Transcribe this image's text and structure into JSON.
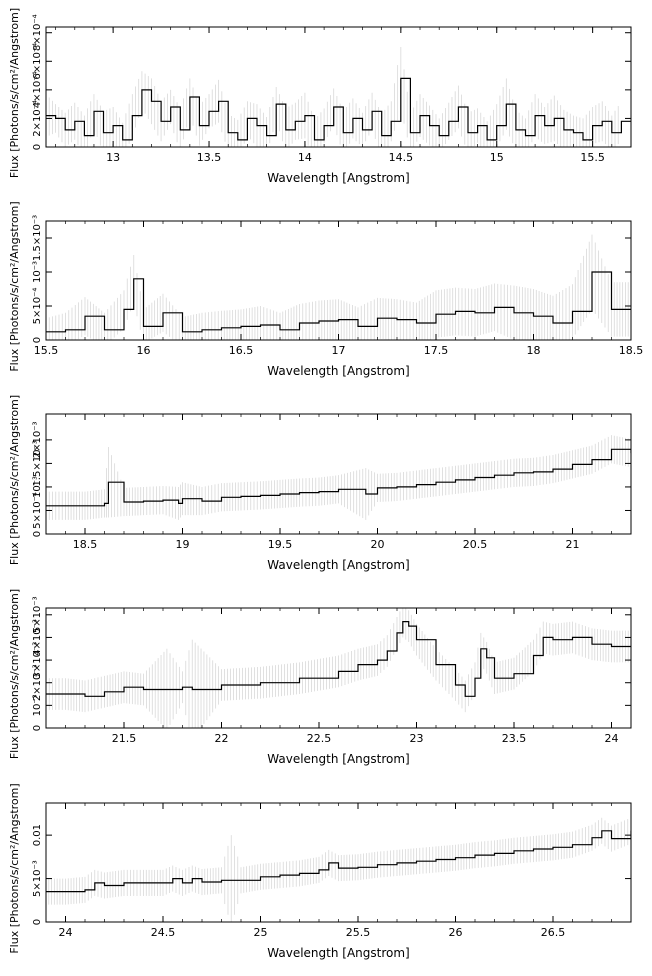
{
  "colors": {
    "data": "#000000",
    "error": "#d8d8d8",
    "axis": "#000000",
    "background": "#ffffff"
  },
  "chart_data": [
    {
      "type": "line",
      "title": "",
      "xlabel": "Wavelength [Angstrom]",
      "ylabel": "Flux [Photons/s/cm²/Angstrom]",
      "xlim": [
        12.65,
        15.7
      ],
      "ylim": [
        0,
        0.00084
      ],
      "xticks": [
        13,
        13.5,
        14,
        14.5,
        15,
        15.5
      ],
      "xtick_labels": [
        "13",
        "13.5",
        "14",
        "14.5",
        "15",
        "15.5"
      ],
      "yticks": [
        0,
        0.0002,
        0.0004,
        0.0006,
        0.0008
      ],
      "ytick_labels": [
        "0",
        "2×10⁻⁴",
        "4×10⁻⁴",
        "6×10⁻⁴",
        "8×10⁻⁴"
      ],
      "grid": false,
      "series": [
        {
          "x": [
            12.65,
            12.7,
            12.75,
            12.8,
            12.85,
            12.9,
            12.95,
            13.0,
            13.05,
            13.1,
            13.15,
            13.2,
            13.25,
            13.3,
            13.35,
            13.4,
            13.45,
            13.5,
            13.55,
            13.6,
            13.65,
            13.7,
            13.75,
            13.8,
            13.85,
            13.9,
            13.95,
            14.0,
            14.05,
            14.1,
            14.15,
            14.2,
            14.25,
            14.3,
            14.35,
            14.4,
            14.45,
            14.5,
            14.55,
            14.6,
            14.65,
            14.7,
            14.75,
            14.8,
            14.85,
            14.9,
            14.95,
            15.0,
            15.05,
            15.1,
            15.15,
            15.2,
            15.25,
            15.3,
            15.35,
            15.4,
            15.45,
            15.5,
            15.55,
            15.6,
            15.65
          ],
          "y": [
            0.00022,
            0.0002,
            0.00012,
            0.00018,
            8e-05,
            0.00025,
            0.0001,
            0.00015,
            5e-05,
            0.00022,
            0.0004,
            0.00032,
            0.00018,
            0.00028,
            0.00012,
            0.00035,
            0.00015,
            0.00025,
            0.00032,
            0.0001,
            5e-05,
            0.0002,
            0.00015,
            8e-05,
            0.0003,
            0.00012,
            0.00018,
            0.00022,
            5e-05,
            0.00015,
            0.00028,
            0.0001,
            0.0002,
            0.00012,
            0.00025,
            8e-05,
            0.00018,
            0.00048,
            0.0001,
            0.00022,
            0.00015,
            8e-05,
            0.00018,
            0.00028,
            0.0001,
            0.00015,
            5e-05,
            0.00015,
            0.0003,
            0.00012,
            8e-05,
            0.00022,
            0.00015,
            0.0002,
            0.00012,
            0.0001,
            5e-05,
            0.00015,
            0.00018,
            0.0001,
            0.00018
          ],
          "err": [
            0.00015,
            0.0001,
            0.00012,
            0.00013,
            0.00014,
            0.00012,
            0.00015,
            0.00013,
            0.00012,
            0.00015,
            0.00013,
            0.00016,
            0.00014,
            0.00012,
            0.00015,
            0.00013,
            0.00014,
            0.00012,
            0.00015,
            0.00013,
            0.00014,
            0.00012,
            0.00015,
            0.00013,
            0.00012,
            0.00015,
            0.00013,
            0.00016,
            0.00014,
            0.00012,
            0.00013,
            0.00015,
            0.00014,
            0.00012,
            0.00013,
            0.00015,
            0.00014,
            0.00022,
            0.00013,
            0.00015,
            0.00014,
            0.00012,
            0.00013,
            0.00015,
            0.00014,
            0.00012,
            0.00013,
            0.00015,
            0.00018,
            0.00014,
            0.00012,
            0.00015,
            0.00013,
            0.00016,
            0.00014,
            0.00012,
            0.00015,
            0.00013,
            0.00014,
            0.00012,
            0.00014
          ]
        }
      ]
    },
    {
      "type": "line",
      "title": "",
      "xlabel": "Wavelength [Angstrom]",
      "ylabel": "Flux [Photons/s/cm²/Angstrom]",
      "xlim": [
        15.5,
        18.5
      ],
      "ylim": [
        0,
        0.00175
      ],
      "xticks": [
        15.5,
        16,
        16.5,
        17,
        17.5,
        18,
        18.5
      ],
      "xtick_labels": [
        "15.5",
        "16",
        "16.5",
        "17",
        "17.5",
        "18",
        "18.5"
      ],
      "yticks": [
        0,
        0.0005,
        0.001,
        0.0015
      ],
      "ytick_labels": [
        "0",
        "5×10⁻⁴",
        "10⁻³",
        "1.5×10⁻³"
      ],
      "grid": false,
      "series": [
        {
          "x": [
            15.5,
            15.6,
            15.7,
            15.8,
            15.9,
            15.95,
            16.0,
            16.1,
            16.2,
            16.3,
            16.4,
            16.5,
            16.6,
            16.7,
            16.8,
            16.9,
            17.0,
            17.1,
            17.2,
            17.3,
            17.4,
            17.5,
            17.6,
            17.7,
            17.8,
            17.9,
            18.0,
            18.1,
            18.2,
            18.3,
            18.4,
            18.5
          ],
          "y": [
            0.00012,
            0.00015,
            0.00035,
            0.00015,
            0.00045,
            0.0009,
            0.0002,
            0.0004,
            0.00012,
            0.00015,
            0.00018,
            0.0002,
            0.00022,
            0.00015,
            0.00025,
            0.00028,
            0.0003,
            0.0002,
            0.00032,
            0.0003,
            0.00025,
            0.00038,
            0.00042,
            0.0004,
            0.00048,
            0.0004,
            0.00035,
            0.00025,
            0.00042,
            0.001,
            0.00045,
            0.00045
          ],
          "err": [
            0.0002,
            0.00025,
            0.00028,
            0.00025,
            0.00028,
            0.00035,
            0.00025,
            0.00028,
            0.00022,
            0.00025,
            0.00025,
            0.00025,
            0.00028,
            0.00025,
            0.00028,
            0.0003,
            0.0003,
            0.00028,
            0.0003,
            0.0003,
            0.0003,
            0.00035,
            0.00035,
            0.00035,
            0.00035,
            0.0004,
            0.0004,
            0.0004,
            0.0004,
            0.00055,
            0.0004,
            0.0004
          ]
        }
      ]
    },
    {
      "type": "line",
      "title": "",
      "xlabel": "Wavelength [Angstrom]",
      "ylabel": "Flux [Photons/s/cm²/Angstrom]",
      "xlim": [
        18.3,
        21.3
      ],
      "ylim": [
        0,
        0.00255
      ],
      "xticks": [
        18.5,
        19,
        19.5,
        20,
        20.5,
        21
      ],
      "xtick_labels": [
        "18.5",
        "19",
        "19.5",
        "20",
        "20.5",
        "21"
      ],
      "yticks": [
        0,
        0.0005,
        0.001,
        0.0015,
        0.002
      ],
      "ytick_labels": [
        "0",
        "5×10⁻⁴",
        "10⁻³",
        "1.5×10⁻³",
        "2×10⁻³"
      ],
      "grid": false,
      "series": [
        {
          "x": [
            18.3,
            18.4,
            18.5,
            18.6,
            18.62,
            18.7,
            18.8,
            18.9,
            18.98,
            19.0,
            19.1,
            19.2,
            19.3,
            19.4,
            19.5,
            19.6,
            19.7,
            19.8,
            19.94,
            20.0,
            20.1,
            20.2,
            20.3,
            20.4,
            20.5,
            20.6,
            20.7,
            20.8,
            20.9,
            21.0,
            21.1,
            21.2,
            21.3
          ],
          "y": [
            0.0006,
            0.0006,
            0.0006,
            0.00065,
            0.0011,
            0.00068,
            0.0007,
            0.00072,
            0.00065,
            0.00075,
            0.0007,
            0.00078,
            0.0008,
            0.00082,
            0.00085,
            0.00088,
            0.0009,
            0.00095,
            0.00085,
            0.00098,
            0.001,
            0.00105,
            0.0011,
            0.00115,
            0.0012,
            0.00125,
            0.0013,
            0.00132,
            0.00138,
            0.00148,
            0.00158,
            0.0018,
            0.00172
          ],
          "err": [
            0.0003,
            0.0003,
            0.0003,
            0.0003,
            0.00075,
            0.0003,
            0.0003,
            0.0003,
            0.00035,
            0.00035,
            0.0003,
            0.0003,
            0.0003,
            0.0003,
            0.0003,
            0.0003,
            0.0003,
            0.0003,
            0.00055,
            0.0003,
            0.0003,
            0.0003,
            0.0003,
            0.0003,
            0.0003,
            0.0003,
            0.0003,
            0.0003,
            0.0003,
            0.0003,
            0.0003,
            0.0003,
            0.0003
          ]
        }
      ]
    },
    {
      "type": "line",
      "title": "",
      "xlabel": "Wavelength [Angstrom]",
      "ylabel": "Flux [Photons/s/cm²/Angstrom]",
      "xlim": [
        21.1,
        24.1
      ],
      "ylim": [
        0,
        0.0053
      ],
      "xticks": [
        21.5,
        22,
        22.5,
        23,
        23.5,
        24
      ],
      "xtick_labels": [
        "21.5",
        "22",
        "22.5",
        "23",
        "23.5",
        "24"
      ],
      "yticks": [
        0,
        0.001,
        0.002,
        0.003,
        0.004,
        0.005
      ],
      "ytick_labels": [
        "0",
        "10⁻³",
        "2×10⁻³",
        "3×10⁻³",
        "4×10⁻³",
        "5×10⁻³"
      ],
      "grid": false,
      "series": [
        {
          "x": [
            21.1,
            21.2,
            21.3,
            21.4,
            21.5,
            21.6,
            21.72,
            21.8,
            21.85,
            22.0,
            22.2,
            22.4,
            22.6,
            22.7,
            22.8,
            22.85,
            22.9,
            22.93,
            22.96,
            23.0,
            23.1,
            23.2,
            23.25,
            23.3,
            23.33,
            23.36,
            23.4,
            23.5,
            23.6,
            23.65,
            23.7,
            23.8,
            23.9,
            24.0,
            24.1
          ],
          "y": [
            0.0015,
            0.0015,
            0.0014,
            0.0016,
            0.0018,
            0.0017,
            0.0017,
            0.0018,
            0.0017,
            0.0019,
            0.002,
            0.0022,
            0.0025,
            0.0028,
            0.003,
            0.0034,
            0.0042,
            0.0047,
            0.0045,
            0.0039,
            0.0028,
            0.0019,
            0.0014,
            0.0022,
            0.0035,
            0.0031,
            0.0022,
            0.0024,
            0.0032,
            0.004,
            0.0039,
            0.004,
            0.0037,
            0.0036,
            0.0036
          ],
          "err": [
            0.0007,
            0.0007,
            0.0007,
            0.0007,
            0.0007,
            0.0007,
            0.0018,
            0.0007,
            0.0022,
            0.0007,
            0.0007,
            0.0007,
            0.0007,
            0.0007,
            0.0007,
            0.0007,
            0.0007,
            0.0007,
            0.0007,
            0.0007,
            0.0007,
            0.0007,
            0.0007,
            0.0007,
            0.0007,
            0.0007,
            0.0007,
            0.0007,
            0.0007,
            0.0007,
            0.0007,
            0.0007,
            0.0007,
            0.0007,
            0.0007
          ]
        }
      ]
    },
    {
      "type": "line",
      "title": "",
      "xlabel": "Wavelength [Angstrom]",
      "ylabel": "Flux [Photons/s/cm²/Angstrom]",
      "xlim": [
        23.9,
        26.9
      ],
      "ylim": [
        0,
        0.0137
      ],
      "xticks": [
        24,
        24.5,
        25,
        25.5,
        26,
        26.5
      ],
      "xtick_labels": [
        "24",
        "24.5",
        "25",
        "25.5",
        "26",
        "26.5"
      ],
      "yticks": [
        0,
        0.005,
        0.01
      ],
      "ytick_labels": [
        "0",
        "5×10⁻³",
        "0.01"
      ],
      "grid": false,
      "series": [
        {
          "x": [
            23.9,
            24.0,
            24.1,
            24.15,
            24.2,
            24.3,
            24.4,
            24.5,
            24.55,
            24.6,
            24.65,
            24.7,
            24.8,
            24.85,
            24.9,
            25.0,
            25.1,
            25.2,
            25.3,
            25.35,
            25.4,
            25.5,
            25.6,
            25.7,
            25.8,
            25.9,
            26.0,
            26.1,
            26.2,
            26.3,
            26.4,
            26.5,
            26.6,
            26.7,
            26.75,
            26.8,
            26.9
          ],
          "y": [
            0.0035,
            0.0035,
            0.0037,
            0.0045,
            0.0042,
            0.0045,
            0.0045,
            0.0045,
            0.005,
            0.0045,
            0.005,
            0.0046,
            0.0048,
            0.0048,
            0.0048,
            0.0052,
            0.0054,
            0.0056,
            0.006,
            0.0068,
            0.0062,
            0.0063,
            0.0066,
            0.0068,
            0.007,
            0.0072,
            0.0074,
            0.0077,
            0.0079,
            0.0082,
            0.0084,
            0.0086,
            0.0089,
            0.0097,
            0.0105,
            0.0096,
            0.0105
          ],
          "err": [
            0.0015,
            0.0015,
            0.0015,
            0.0015,
            0.0015,
            0.0015,
            0.0015,
            0.0015,
            0.0015,
            0.0015,
            0.0015,
            0.0015,
            0.0015,
            0.0052,
            0.0015,
            0.0015,
            0.0015,
            0.0015,
            0.0015,
            0.0015,
            0.0015,
            0.0015,
            0.0015,
            0.0015,
            0.0015,
            0.0015,
            0.0015,
            0.0015,
            0.0015,
            0.0015,
            0.0015,
            0.0015,
            0.0015,
            0.0015,
            0.0015,
            0.0015,
            0.0015
          ]
        }
      ]
    }
  ]
}
